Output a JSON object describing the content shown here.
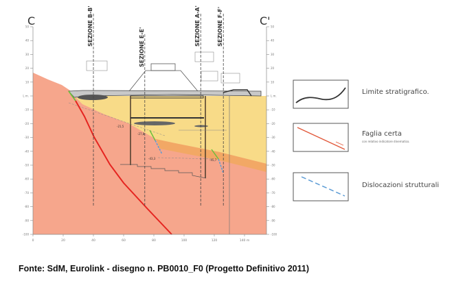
{
  "section": {
    "left_label": "C",
    "right_label": "C'",
    "zero_label": "L m.",
    "y_ticks": [
      50,
      40,
      30,
      20,
      10,
      0,
      -10,
      -20,
      -30,
      -40,
      -50,
      -60,
      -70,
      -80,
      -90,
      -100
    ],
    "x_ticks": [
      "0",
      "20",
      "40",
      "60",
      "80",
      "100",
      "120",
      "140 m"
    ],
    "sections": [
      {
        "label": "SEZIONE B-B'",
        "x_m": 40
      },
      {
        "label": "SEZIONE E-E'",
        "x_m": 74
      },
      {
        "label": "SEZIONE A-A'",
        "x_m": 111
      },
      {
        "label": "SEZIONE F-F'",
        "x_m": 126
      }
    ],
    "elevations": [
      "-21,5",
      "-27,8",
      "-43,3",
      "-45,7"
    ],
    "colors": {
      "bedrock": "#f6a68c",
      "sediment": "#f8db88",
      "band": "#f2a865",
      "fault": "#e52420",
      "dislocation": "#5b9bd5",
      "stratigraphic": "#333333"
    }
  },
  "legend": [
    {
      "label": "Limite stratigrafico.",
      "sub": "",
      "icon": "curve-line-icon"
    },
    {
      "label": "Faglia certa",
      "sub": "con relativo indicatore dinematico.",
      "icon": "red-fault-line-icon"
    },
    {
      "label": "Dislocazioni strutturali",
      "sub": "",
      "icon": "blue-dashed-line-icon"
    }
  ],
  "caption": "Fonte: SdM, Eurolink - disegno n. PB0010_F0 (Progetto Definitivo 2011)"
}
